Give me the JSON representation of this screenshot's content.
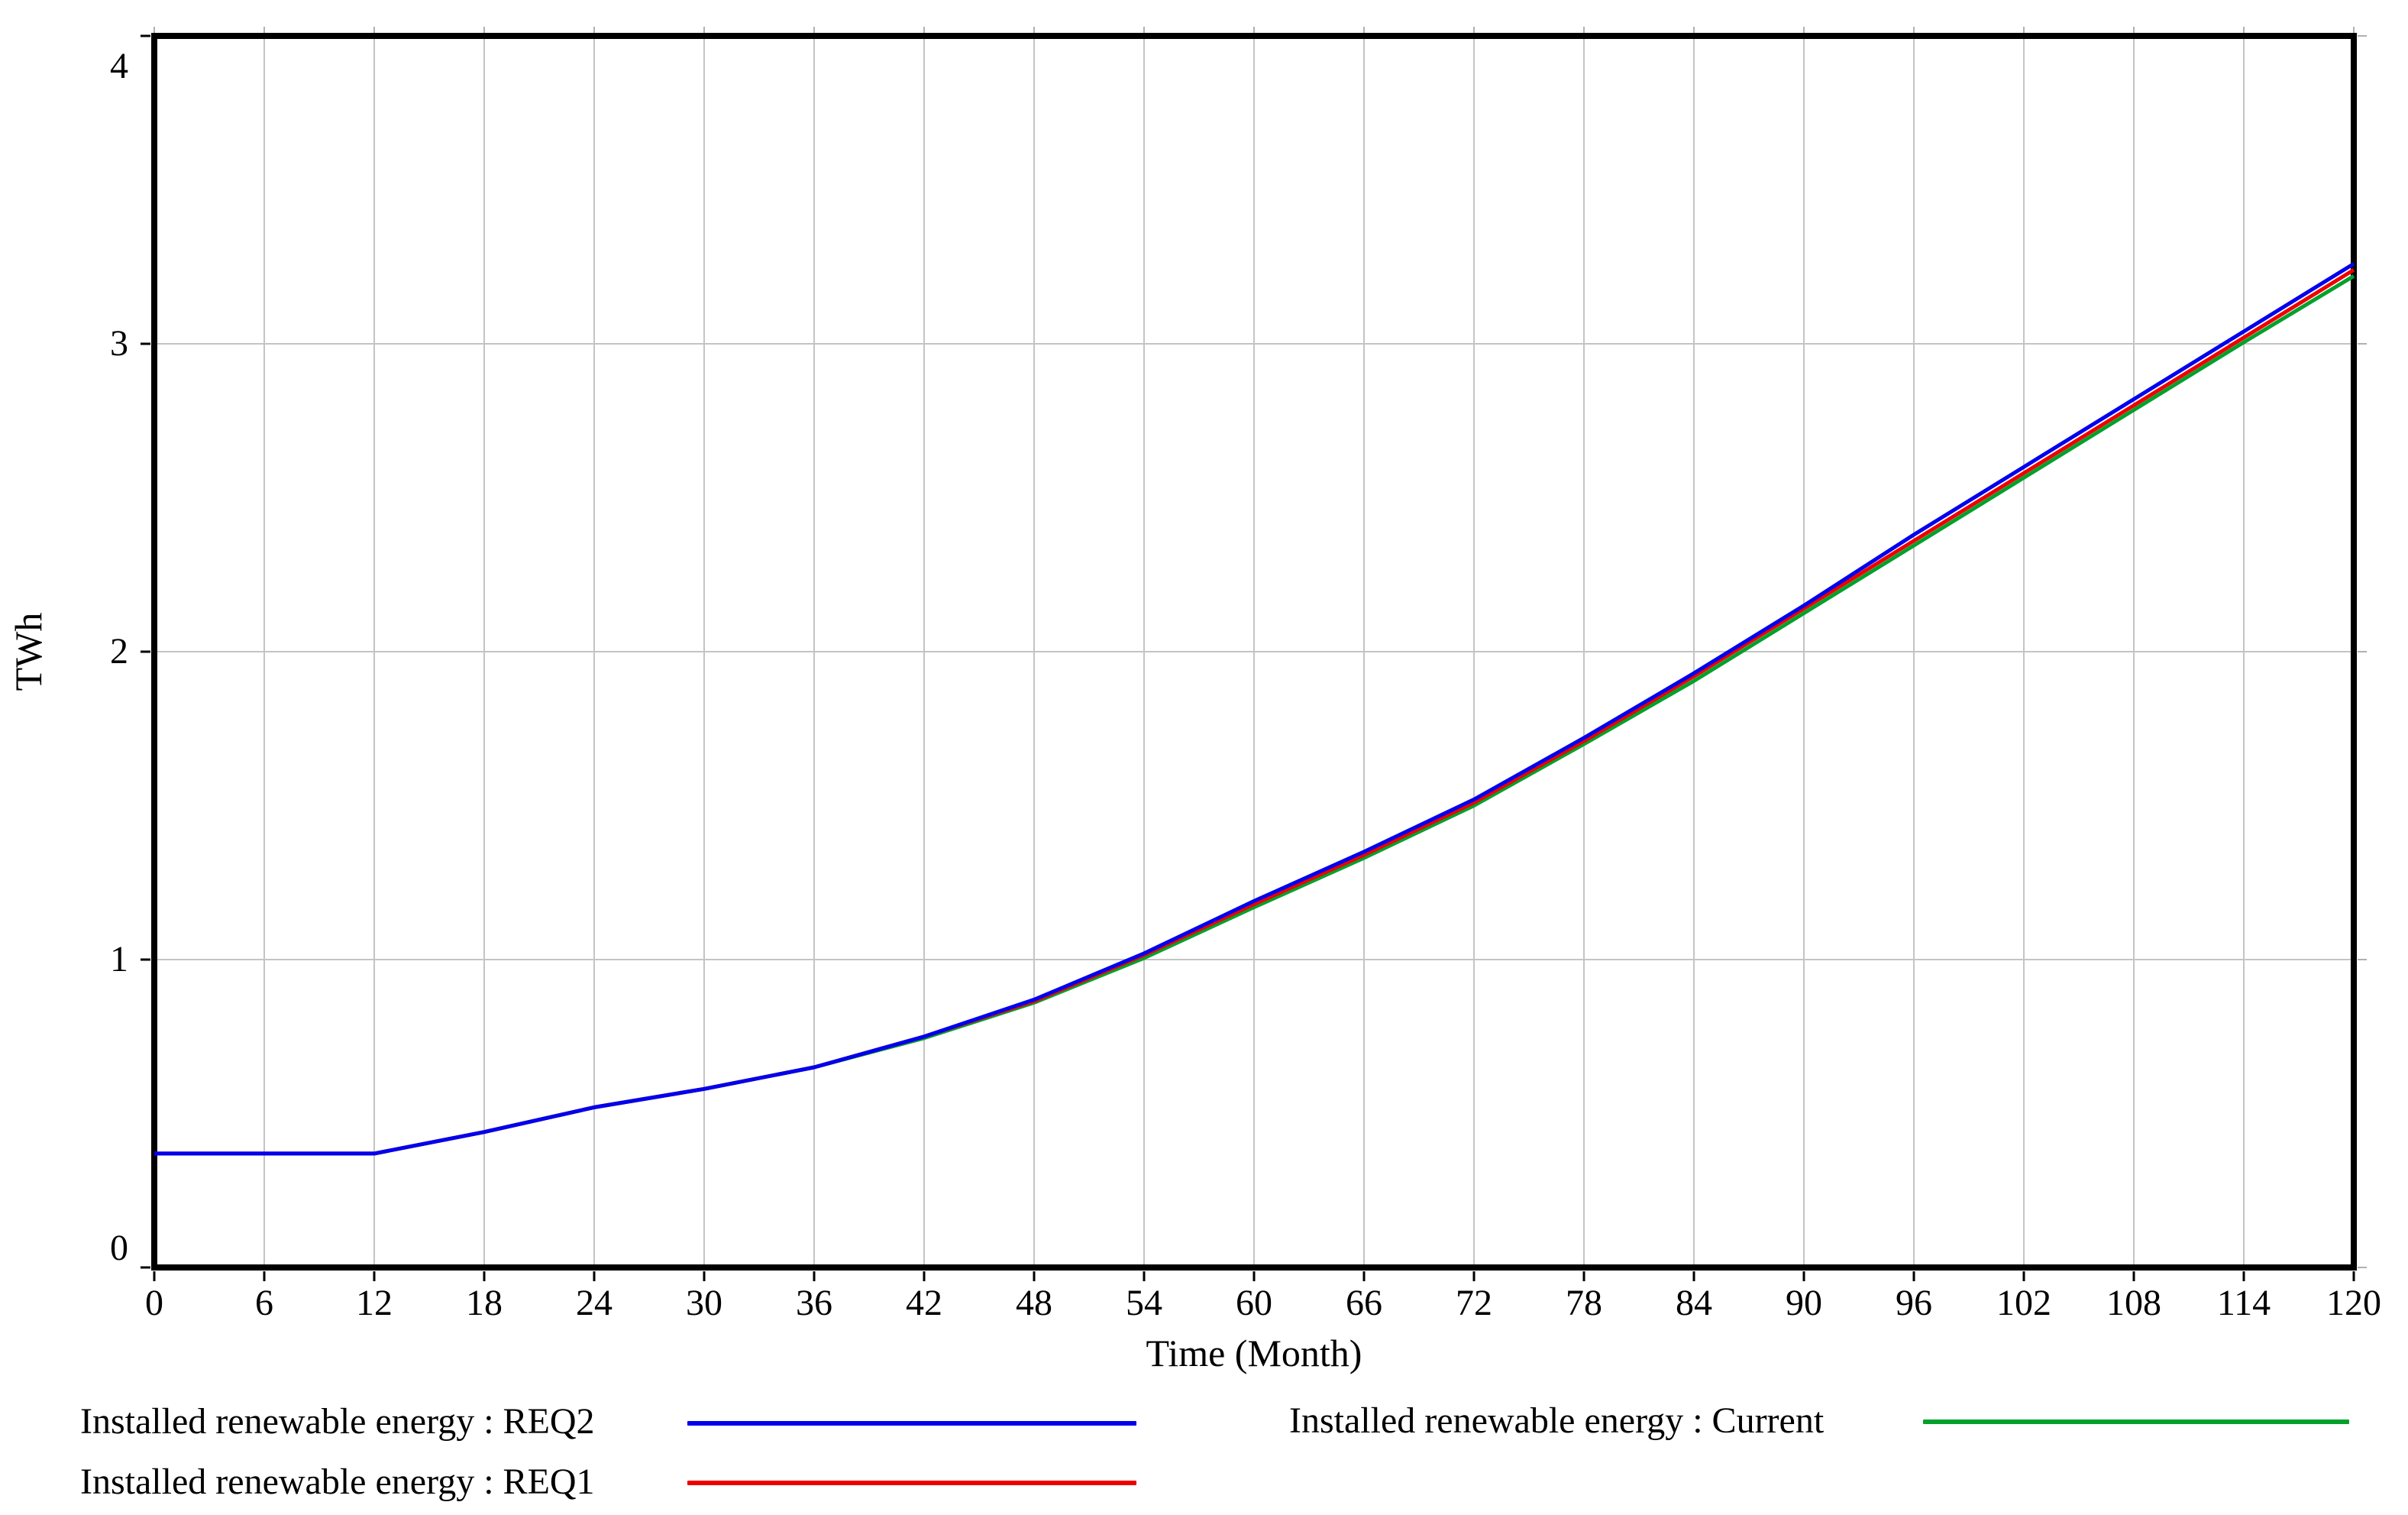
{
  "chart_data": {
    "type": "line",
    "title": "",
    "xlabel": "Time (Month)",
    "ylabel": "TWh",
    "xlim": [
      0,
      120
    ],
    "ylim": [
      0,
      4
    ],
    "x_ticks": [
      0,
      6,
      12,
      18,
      24,
      30,
      36,
      42,
      48,
      54,
      60,
      66,
      72,
      78,
      84,
      90,
      96,
      102,
      108,
      114,
      120
    ],
    "y_ticks": [
      0,
      1,
      2,
      3,
      4
    ],
    "grid": true,
    "grid_color": "#c4c4c4",
    "axis_color": "#000000",
    "legend_position": "bottom",
    "x": [
      0,
      6,
      12,
      18,
      24,
      30,
      36,
      42,
      48,
      54,
      60,
      66,
      72,
      78,
      84,
      90,
      96,
      102,
      108,
      114,
      120
    ],
    "series": [
      {
        "name": "Installed renewable energy : Current",
        "color": "#00a12c",
        "values": [
          0.37,
          0.37,
          0.37,
          0.44,
          0.52,
          0.58,
          0.65,
          0.745,
          0.86,
          1.005,
          1.17,
          1.33,
          1.5,
          1.7,
          1.905,
          2.125,
          2.345,
          2.565,
          2.785,
          3.005,
          3.22
        ]
      },
      {
        "name": "Installed renewable energy : REQ1",
        "color": "#ee0000",
        "values": [
          0.37,
          0.37,
          0.37,
          0.44,
          0.52,
          0.58,
          0.65,
          0.75,
          0.865,
          1.015,
          1.18,
          1.34,
          1.51,
          1.71,
          1.92,
          2.14,
          2.36,
          2.58,
          2.8,
          3.02,
          3.24
        ]
      },
      {
        "name": "Installed renewable energy : REQ2",
        "color": "#0000ee",
        "values": [
          0.37,
          0.37,
          0.37,
          0.44,
          0.52,
          0.58,
          0.65,
          0.75,
          0.87,
          1.02,
          1.19,
          1.35,
          1.52,
          1.72,
          1.93,
          2.15,
          2.38,
          2.6,
          2.82,
          3.04,
          3.26
        ]
      }
    ],
    "legend": [
      {
        "label": "Installed renewable energy : REQ2",
        "series": 2,
        "column": "left"
      },
      {
        "label": "Installed renewable energy : REQ1",
        "series": 1,
        "column": "left"
      },
      {
        "label": "Installed renewable energy : Current",
        "series": 0,
        "column": "right"
      }
    ]
  }
}
